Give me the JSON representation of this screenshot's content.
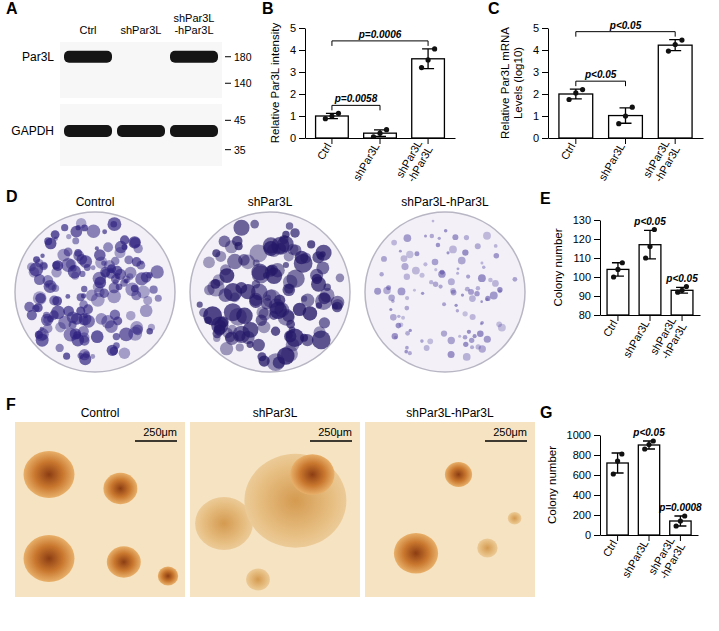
{
  "chart_data": [
    {
      "type": "bar",
      "panel": "B",
      "ylabel": "Relative Par3L intensity",
      "categories": [
        "Ctrl",
        "shPar3L",
        "shPar3L-hPar3L"
      ],
      "values": [
        1.0,
        0.22,
        3.6
      ],
      "errors": [
        0.12,
        0.15,
        0.45
      ],
      "points": [
        [
          0.88,
          1.0,
          1.12
        ],
        [
          0.05,
          0.22,
          0.38
        ],
        [
          3.2,
          3.55,
          4.05
        ]
      ],
      "color": "#ffffff",
      "ylim": [
        0,
        5
      ],
      "yticks": [
        0,
        1,
        2,
        3,
        4,
        5
      ],
      "annotations": [
        {
          "text": "p=0.0058",
          "between": [
            "Ctrl",
            "shPar3L"
          ]
        },
        {
          "text": "p=0.0006",
          "between": [
            "Ctrl",
            "shPar3L-hPar3L"
          ]
        }
      ]
    },
    {
      "type": "bar",
      "panel": "C",
      "ylabel": "Relative Par3L mRNA Levels (log10)",
      "categories": [
        "Ctrl",
        "shPar3L",
        "shPar3L-hPar3L"
      ],
      "values": [
        2.0,
        1.02,
        4.22
      ],
      "errors": [
        0.22,
        0.35,
        0.25
      ],
      "points": [
        [
          1.75,
          2.05,
          2.2
        ],
        [
          0.65,
          1.0,
          1.4
        ],
        [
          3.95,
          4.25,
          4.45
        ]
      ],
      "color": "#ffffff",
      "ylim": [
        0,
        5
      ],
      "yticks": [
        0,
        1,
        2,
        3,
        4,
        5
      ],
      "annotations": [
        {
          "text": "p<0.05",
          "between": [
            "Ctrl",
            "shPar3L"
          ]
        },
        {
          "text": "p<0.05",
          "between": [
            "Ctrl",
            "shPar3L-hPar3L"
          ]
        }
      ]
    },
    {
      "type": "bar",
      "panel": "E",
      "ylabel": "Colony number",
      "categories": [
        "Ctrl",
        "shPar3L",
        "shPar3L-hPar3L"
      ],
      "values": [
        104,
        117,
        93
      ],
      "errors": [
        3.5,
        7.5,
        1.5
      ],
      "points": [
        [
          100,
          104,
          107.5
        ],
        [
          110,
          116,
          125
        ],
        [
          92,
          93,
          95
        ]
      ],
      "color": "#ffffff",
      "ylim": [
        80,
        130
      ],
      "yticks": [
        80,
        90,
        100,
        110,
        120,
        130
      ],
      "annotations": [
        {
          "text": "p<0.05",
          "at": "shPar3L"
        },
        {
          "text": "p<0.05",
          "at": "shPar3L-hPar3L"
        }
      ]
    },
    {
      "type": "bar",
      "panel": "G",
      "ylabel": "Colony number",
      "categories": [
        "Ctrl",
        "shPar3L",
        "shPar3L-hPar3L"
      ],
      "values": [
        720,
        900,
        140
      ],
      "errors": [
        100,
        40,
        50
      ],
      "points": [
        [
          610,
          740,
          810
        ],
        [
          860,
          905,
          940
        ],
        [
          90,
          140,
          190
        ]
      ],
      "color": "#ffffff",
      "ylim": [
        0,
        1000
      ],
      "yticks": [
        0,
        200,
        400,
        600,
        800,
        1000
      ],
      "annotations": [
        {
          "text": "p<0.05",
          "at": "shPar3L"
        },
        {
          "text": "p=0.0008",
          "at": "shPar3L-hPar3L"
        }
      ]
    }
  ],
  "blot": {
    "panel": "A",
    "lanes": [
      "Ctrl",
      "shPar3L",
      "shPar3L-hPar3L"
    ],
    "bands": [
      {
        "label": "Par3L",
        "markers": [
          180,
          140
        ],
        "present": [
          true,
          false,
          true
        ]
      },
      {
        "label": "GAPDH",
        "markers": [
          45,
          35
        ],
        "present": [
          true,
          true,
          true
        ]
      }
    ]
  },
  "plates": {
    "panel": "D",
    "labels": [
      "Control",
      "shPar3L",
      "shPar3L-hPar3L"
    ]
  },
  "spheres": {
    "panel": "F",
    "labels": [
      "Control",
      "shPar3L",
      "shPar3L-hPar3L"
    ],
    "scale_bar": "250μm"
  }
}
